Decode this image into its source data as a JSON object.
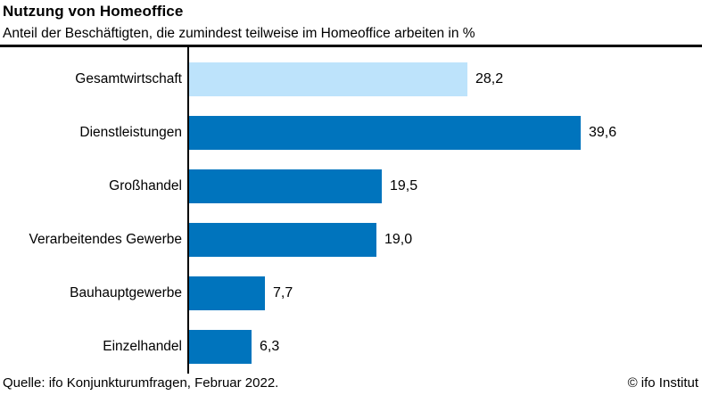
{
  "header": {
    "title": "Nutzung von Homeoffice",
    "subtitle": "Anteil der Beschäftigten, die zumindest teilweise im Homeoffice arbeiten in %"
  },
  "chart_data": {
    "type": "bar",
    "orientation": "horizontal",
    "title": "Nutzung von Homeoffice",
    "subtitle": "Anteil der Beschäftigten, die zumindest teilweise im Homeoffice arbeiten in %",
    "categories": [
      "Gesamtwirtschaft",
      "Dienstleistungen",
      "Großhandel",
      "Verarbeitendes Gewerbe",
      "Bauhauptgewerbe",
      "Einzelhandel"
    ],
    "values": [
      28.2,
      39.6,
      19.5,
      19.0,
      7.7,
      6.3
    ],
    "value_labels": [
      "28,2",
      "39,6",
      "19,5",
      "19,0",
      "7,7",
      "6,3"
    ],
    "xlabel": "",
    "ylabel": "",
    "xlim": [
      0,
      52
    ],
    "grid": false,
    "legend": "none",
    "value_labels_position": "outside-end",
    "highlight_index": 0,
    "bar_color": "#0074BD",
    "highlight_color": "#BDE3FB",
    "axis_color": "#000000"
  },
  "footer": {
    "source": "Quelle: ifo Konjunkturumfragen, Februar 2022.",
    "copyright": "© ifo Institut"
  }
}
